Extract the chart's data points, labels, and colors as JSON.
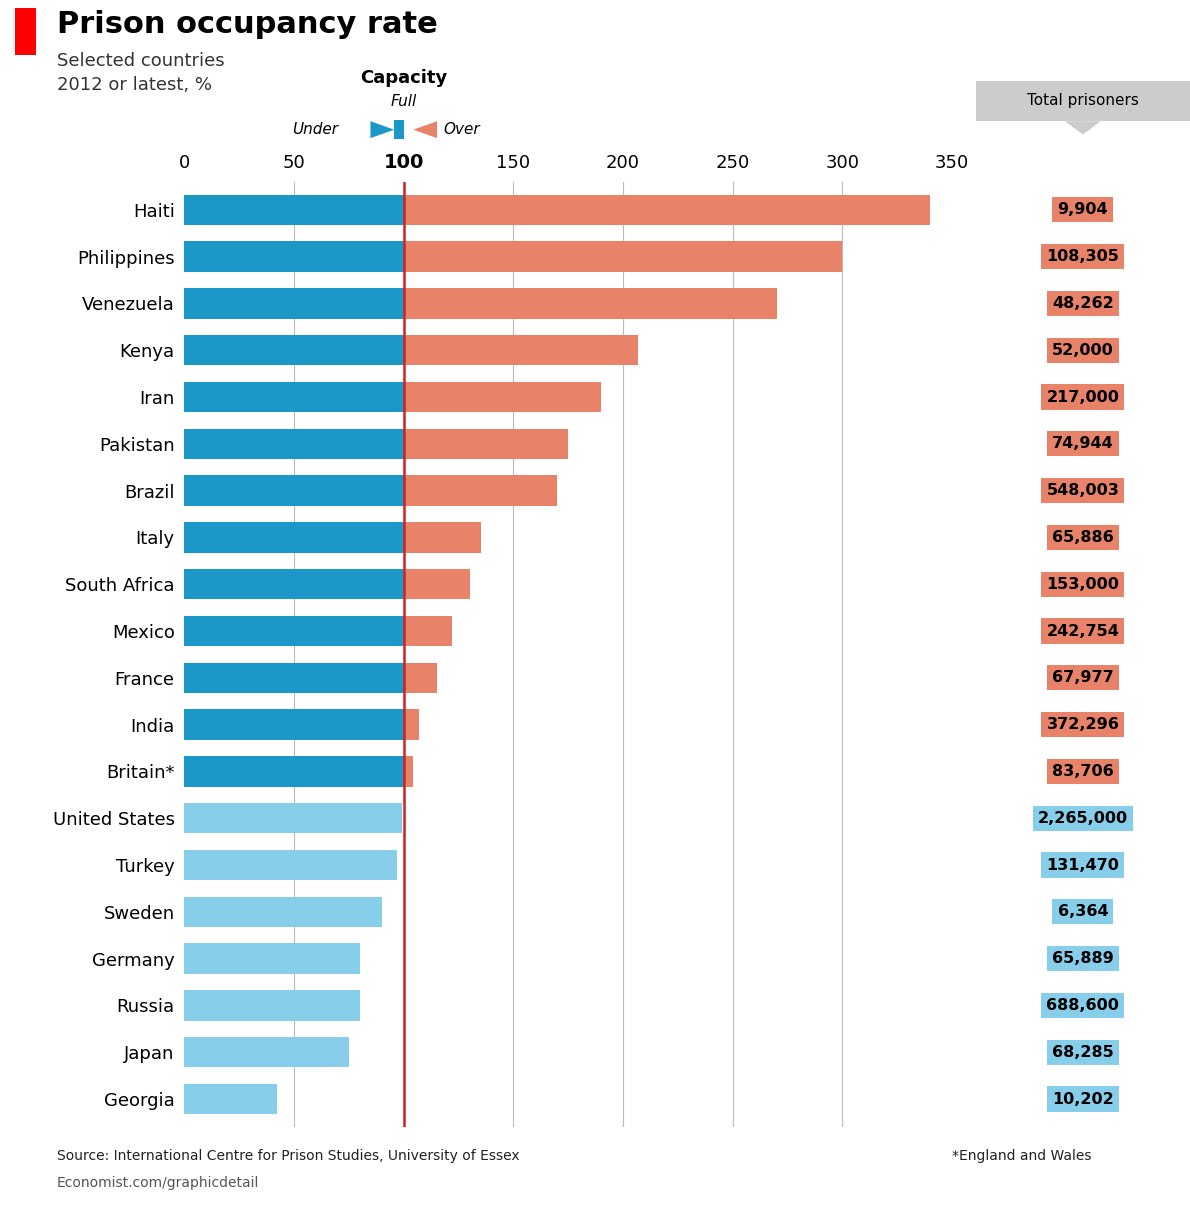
{
  "countries": [
    "Haiti",
    "Philippines",
    "Venezuela",
    "Kenya",
    "Iran",
    "Pakistan",
    "Brazil",
    "Italy",
    "South Africa",
    "Mexico",
    "France",
    "India",
    "Britain*",
    "United States",
    "Turkey",
    "Sweden",
    "Germany",
    "Russia",
    "Japan",
    "Georgia"
  ],
  "occupancy": [
    340,
    300,
    270,
    207,
    190,
    175,
    170,
    135,
    130,
    122,
    115,
    107,
    104,
    99,
    97,
    90,
    80,
    80,
    75,
    42
  ],
  "total_prisoners": [
    "9,904",
    "108,305",
    "48,262",
    "52,000",
    "217,000",
    "74,944",
    "548,003",
    "65,886",
    "153,000",
    "242,754",
    "67,977",
    "372,296",
    "83,706",
    "2,265,000",
    "131,470",
    "6,364",
    "65,889",
    "688,600",
    "68,285",
    "10,202"
  ],
  "over_capacity": [
    true,
    true,
    true,
    true,
    true,
    true,
    true,
    true,
    true,
    true,
    true,
    true,
    true,
    false,
    false,
    false,
    false,
    false,
    false,
    false
  ],
  "color_over": "#E8836A",
  "color_under": "#87CEEB",
  "color_dark_blue": "#1B98C8",
  "color_label_bg_over": "#E8836A",
  "color_label_bg_under": "#87CEEB",
  "color_total_prisoners_bg": "#CCCCCC",
  "title": "Prison occupancy rate",
  "subtitle1": "Selected countries",
  "subtitle2": "2012 or latest, %",
  "source": "Source: International Centre for Prison Studies, University of Essex",
  "footnote": "*England and Wales",
  "website": "Economist.com/graphicdetail",
  "xlim": [
    0,
    350
  ],
  "xticks": [
    0,
    50,
    100,
    150,
    200,
    250,
    300,
    350
  ],
  "capacity_line": 100,
  "bar_height": 0.65,
  "background_color": "#FFFFFF",
  "title_fontsize": 22,
  "label_fontsize": 13,
  "tick_fontsize": 13,
  "prisoner_fontsize": 11.5
}
